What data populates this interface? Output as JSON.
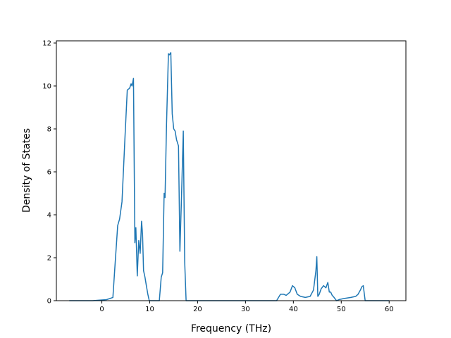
{
  "chart_data": {
    "type": "line",
    "title": "",
    "xlabel": "Frequency (THz)",
    "ylabel": "Density of States",
    "xlim": [
      -9.5,
      63.5
    ],
    "ylim": [
      0,
      12.1
    ],
    "xticks": [
      0,
      10,
      20,
      30,
      40,
      50,
      60
    ],
    "yticks": [
      0,
      2,
      4,
      6,
      8,
      10,
      12
    ],
    "grid": false,
    "legend": "none",
    "series": [
      {
        "color": "#1f77b4",
        "x": [
          -6.8,
          -2,
          1,
          2.3,
          2.7,
          3.3,
          3.7,
          4.2,
          4.8,
          5.3,
          5.8,
          6.1,
          6.3,
          6.6,
          6.9,
          7.1,
          7.4,
          7.7,
          8.0,
          8.3,
          8.5,
          8.7,
          9.0,
          9.3,
          9.6,
          9.9,
          10.3,
          10.6,
          11.0,
          12.0,
          12.4,
          12.7,
          13.0,
          13.2,
          13.5,
          13.9,
          14.1,
          14.4,
          14.7,
          15.0,
          15.3,
          15.6,
          16.0,
          16.3,
          16.6,
          17.0,
          17.3,
          17.6,
          18.0,
          18.2,
          20,
          25,
          30,
          36.5,
          37.3,
          38.0,
          38.5,
          39.3,
          39.8,
          40.3,
          40.8,
          41.5,
          42.5,
          43.5,
          44.2,
          44.7,
          44.9,
          45.1,
          45.4,
          45.8,
          46.3,
          46.8,
          47.2,
          47.5,
          47.8,
          48.1,
          48.5,
          49.0,
          49.5,
          50.5,
          52.0,
          53.0,
          53.5,
          54.0,
          54.3,
          54.6,
          55.0,
          56.0,
          60.0
        ],
        "y": [
          0,
          0,
          0.05,
          0.15,
          1.5,
          3.5,
          3.8,
          4.6,
          7.5,
          9.8,
          9.9,
          10.1,
          10.0,
          10.35,
          2.7,
          3.4,
          1.15,
          2.8,
          2.2,
          3.7,
          3.1,
          1.4,
          1.1,
          0.7,
          0.3,
          0,
          0,
          0,
          0,
          0,
          1.1,
          1.3,
          5.0,
          4.8,
          8.2,
          11.5,
          11.45,
          11.55,
          8.7,
          8.0,
          7.9,
          7.5,
          7.2,
          2.3,
          4.5,
          7.9,
          1.8,
          0,
          0,
          0,
          0,
          0,
          0,
          0,
          0.3,
          0.3,
          0.25,
          0.4,
          0.7,
          0.6,
          0.3,
          0.2,
          0.15,
          0.2,
          0.5,
          1.4,
          2.05,
          0.2,
          0.3,
          0.55,
          0.7,
          0.6,
          0.85,
          0.4,
          0.4,
          0.25,
          0.15,
          0,
          0.05,
          0.1,
          0.15,
          0.2,
          0.3,
          0.5,
          0.65,
          0.7,
          0,
          0,
          0
        ]
      }
    ]
  }
}
